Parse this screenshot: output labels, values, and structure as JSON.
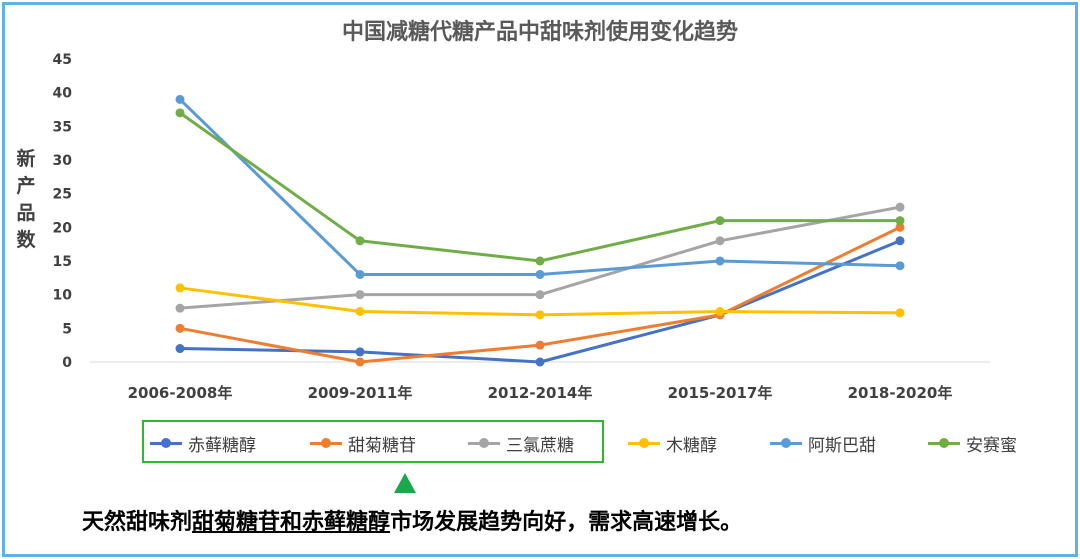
{
  "chart_data": {
    "type": "line",
    "title": "中国减糖代糖产品中甜味剂使用变化趋势",
    "ylabel": "新产品数",
    "xlabel": "",
    "ylim": [
      0,
      45
    ],
    "yticks": [
      0,
      5,
      10,
      15,
      20,
      25,
      30,
      35,
      40,
      45
    ],
    "categories": [
      "2006-2008年",
      "2009-2011年",
      "2012-2014年",
      "2015-2017年",
      "2018-2020年"
    ],
    "grid": false,
    "legend_position": "bottom",
    "series": [
      {
        "name": "赤藓糖醇",
        "color": "#4472c4",
        "values": [
          2,
          1.5,
          0,
          7,
          18
        ]
      },
      {
        "name": "甜菊糖苷",
        "color": "#ed7d31",
        "values": [
          5,
          0,
          2.5,
          7,
          20
        ]
      },
      {
        "name": "三氯蔗糖",
        "color": "#a5a5a5",
        "values": [
          8,
          10,
          10,
          18,
          23
        ]
      },
      {
        "name": "木糖醇",
        "color": "#ffc000",
        "values": [
          11,
          7.5,
          7,
          7.5,
          7.3
        ]
      },
      {
        "name": "阿斯巴甜",
        "color": "#5b9bd5",
        "values": [
          39,
          13,
          13,
          15,
          14.3
        ]
      },
      {
        "name": "安赛蜜",
        "color": "#70ad47",
        "values": [
          37,
          18,
          15,
          21,
          21
        ]
      }
    ]
  },
  "conclusion": {
    "part1": "天然甜味剂",
    "part2": "甜菊糖苷",
    "part3": "和",
    "part4": "赤藓糖醇",
    "part5": "市场发展趋势向好，需求高速增长。"
  },
  "colors": {
    "frame": "#5bb3e8",
    "legend_highlight": "#2eb82e",
    "arrow": "#19a84a"
  }
}
